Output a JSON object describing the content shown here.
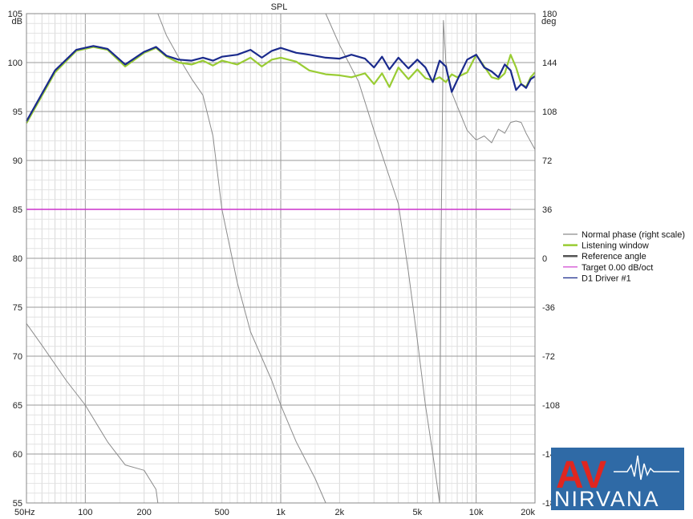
{
  "chart_data": {
    "type": "line",
    "title": "SPL",
    "left_unit": "dB",
    "right_unit": "deg",
    "x_scale": "log",
    "x_range": [
      50,
      20000
    ],
    "ylim": [
      55,
      105
    ],
    "y2lim": [
      -180,
      180
    ],
    "x_tick_labels": [
      {
        "x": 50,
        "label": "50Hz"
      },
      {
        "x": 100,
        "label": "100"
      },
      {
        "x": 200,
        "label": "200"
      },
      {
        "x": 500,
        "label": "500"
      },
      {
        "x": 1000,
        "label": "1k"
      },
      {
        "x": 2000,
        "label": "2k"
      },
      {
        "x": 5000,
        "label": "5k"
      },
      {
        "x": 10000,
        "label": "10k"
      },
      {
        "x": 20000,
        "label": "20k"
      }
    ],
    "y_ticks": [
      105,
      100,
      95,
      90,
      85,
      80,
      75,
      70,
      65,
      60,
      55
    ],
    "y2_ticks": [
      180,
      144,
      108,
      72,
      36,
      0,
      -36,
      -72,
      -108,
      -144,
      -180
    ],
    "grid": true,
    "legend_position": "right",
    "series": [
      {
        "name": "Normal phase (right scale)",
        "color": "#8c8c8c",
        "axis": "right",
        "segments": [
          [
            [
              50,
              -48
            ],
            [
              60,
              -64
            ],
            [
              80,
              -90
            ],
            [
              100,
              -108
            ],
            [
              130,
              -135
            ],
            [
              160,
              -152
            ],
            [
              200,
              -156
            ],
            [
              230,
              -170
            ],
            [
              235,
              -180
            ]
          ],
          [
            [
              235,
              180
            ],
            [
              260,
              164
            ],
            [
              300,
              148
            ],
            [
              350,
              132
            ],
            [
              400,
              120
            ],
            [
              450,
              90
            ],
            [
              500,
              36
            ],
            [
              600,
              -18
            ],
            [
              700,
              -54
            ],
            [
              900,
              -90
            ],
            [
              1000,
              -108
            ],
            [
              1200,
              -135
            ],
            [
              1500,
              -162
            ],
            [
              1700,
              -180
            ]
          ],
          [
            [
              1700,
              180
            ],
            [
              2000,
              157
            ],
            [
              2500,
              130
            ],
            [
              3000,
              94
            ],
            [
              3500,
              65
            ],
            [
              4000,
              40
            ],
            [
              4500,
              -10
            ],
            [
              5000,
              -60
            ],
            [
              5500,
              -108
            ],
            [
              6000,
              -144
            ],
            [
              6500,
              -180
            ]
          ],
          [
            [
              6500,
              -180
            ],
            [
              6600,
              0
            ],
            [
              6800,
              175
            ],
            [
              7000,
              144
            ],
            [
              7500,
              122
            ],
            [
              8000,
              112
            ],
            [
              9000,
              94
            ],
            [
              10000,
              87
            ],
            [
              11000,
              90
            ],
            [
              12000,
              85
            ],
            [
              13000,
              95
            ],
            [
              14000,
              92
            ],
            [
              15000,
              100
            ],
            [
              16000,
              101
            ],
            [
              17000,
              100
            ],
            [
              18000,
              92
            ],
            [
              20000,
              80
            ]
          ]
        ]
      },
      {
        "name": "Listening window",
        "color": "#99cc33",
        "axis": "left",
        "points": [
          [
            50,
            93.8
          ],
          [
            70,
            99.0
          ],
          [
            90,
            101.2
          ],
          [
            110,
            101.6
          ],
          [
            130,
            101.3
          ],
          [
            160,
            99.6
          ],
          [
            200,
            101.0
          ],
          [
            230,
            101.5
          ],
          [
            260,
            100.6
          ],
          [
            300,
            100.0
          ],
          [
            350,
            99.8
          ],
          [
            400,
            100.2
          ],
          [
            450,
            99.7
          ],
          [
            500,
            100.2
          ],
          [
            600,
            99.8
          ],
          [
            700,
            100.5
          ],
          [
            800,
            99.6
          ],
          [
            900,
            100.3
          ],
          [
            1000,
            100.5
          ],
          [
            1200,
            100.1
          ],
          [
            1400,
            99.2
          ],
          [
            1700,
            98.8
          ],
          [
            2000,
            98.7
          ],
          [
            2300,
            98.5
          ],
          [
            2700,
            98.9
          ],
          [
            3000,
            97.8
          ],
          [
            3300,
            98.9
          ],
          [
            3600,
            97.5
          ],
          [
            4000,
            99.5
          ],
          [
            4500,
            98.3
          ],
          [
            5000,
            99.3
          ],
          [
            5500,
            98.4
          ],
          [
            6000,
            98.2
          ],
          [
            6500,
            98.5
          ],
          [
            7000,
            98.0
          ],
          [
            7500,
            98.8
          ],
          [
            8000,
            98.5
          ],
          [
            9000,
            99.0
          ],
          [
            10000,
            100.8
          ],
          [
            11000,
            99.6
          ],
          [
            12000,
            98.5
          ],
          [
            13000,
            98.3
          ],
          [
            14000,
            98.9
          ],
          [
            15000,
            100.8
          ],
          [
            16000,
            99.5
          ],
          [
            17000,
            97.8
          ],
          [
            18000,
            97.5
          ],
          [
            19000,
            98.5
          ],
          [
            20000,
            99.0
          ]
        ]
      },
      {
        "name": "Reference angle",
        "color": "#555555",
        "axis": "left",
        "points": []
      },
      {
        "name": "Target 0.00 dB/oct",
        "color": "#cc33cc",
        "axis": "left",
        "points": [
          [
            50,
            85
          ],
          [
            15000,
            85
          ]
        ]
      },
      {
        "name": "D1 Driver #1",
        "color": "#1a2a8c",
        "axis": "left",
        "points": [
          [
            50,
            94.0
          ],
          [
            70,
            99.2
          ],
          [
            90,
            101.3
          ],
          [
            110,
            101.7
          ],
          [
            130,
            101.4
          ],
          [
            160,
            99.8
          ],
          [
            200,
            101.1
          ],
          [
            230,
            101.6
          ],
          [
            260,
            100.7
          ],
          [
            300,
            100.3
          ],
          [
            350,
            100.2
          ],
          [
            400,
            100.5
          ],
          [
            450,
            100.2
          ],
          [
            500,
            100.6
          ],
          [
            600,
            100.8
          ],
          [
            700,
            101.3
          ],
          [
            800,
            100.5
          ],
          [
            900,
            101.2
          ],
          [
            1000,
            101.5
          ],
          [
            1200,
            101.0
          ],
          [
            1400,
            100.8
          ],
          [
            1700,
            100.5
          ],
          [
            2000,
            100.4
          ],
          [
            2300,
            100.8
          ],
          [
            2700,
            100.4
          ],
          [
            3000,
            99.5
          ],
          [
            3300,
            100.6
          ],
          [
            3600,
            99.3
          ],
          [
            4000,
            100.5
          ],
          [
            4500,
            99.4
          ],
          [
            5000,
            100.3
          ],
          [
            5500,
            99.5
          ],
          [
            6000,
            98.0
          ],
          [
            6500,
            100.2
          ],
          [
            7000,
            99.6
          ],
          [
            7500,
            97.0
          ],
          [
            8000,
            98.2
          ],
          [
            9000,
            100.3
          ],
          [
            10000,
            100.8
          ],
          [
            11000,
            99.5
          ],
          [
            12000,
            99.1
          ],
          [
            13000,
            98.5
          ],
          [
            14000,
            99.8
          ],
          [
            15000,
            99.2
          ],
          [
            16000,
            97.2
          ],
          [
            17000,
            97.8
          ],
          [
            18000,
            97.4
          ],
          [
            19000,
            98.3
          ],
          [
            20000,
            98.6
          ]
        ]
      }
    ]
  },
  "logo": {
    "text_top": "AV",
    "text_bottom": "NIRVANA"
  }
}
